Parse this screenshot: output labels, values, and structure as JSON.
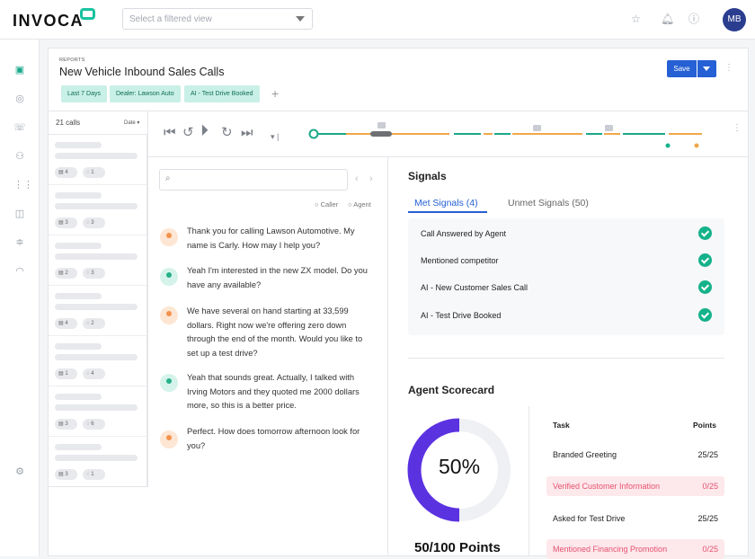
{
  "app": {
    "logo": "INVOCA",
    "view_placeholder": "Select a filtered view",
    "user_initials": "MB"
  },
  "icons": {
    "star": "star-icon",
    "bell": "bell-icon",
    "help": "help-icon"
  },
  "rail": [
    "dashboard-icon",
    "target-icon",
    "phone-icon",
    "people-icon",
    "grid-icon",
    "chart-icon",
    "sliders-icon",
    "signal-icon",
    "gear-icon"
  ],
  "header": {
    "eyebrow": "REPORTS",
    "title": "New Vehicle Inbound Sales Calls",
    "chips": [
      "Last 7 Days",
      "Dealer: Lawson Auto",
      "AI - Test Drive Booked"
    ],
    "add_label": "+",
    "save_label": "Save"
  },
  "calls": {
    "count_label": "21 calls",
    "sort_label": "Date",
    "items": [
      {
        "a": "4",
        "b": "1"
      },
      {
        "a": "3",
        "b": "3"
      },
      {
        "a": "2",
        "b": "3"
      },
      {
        "a": "4",
        "b": "2"
      },
      {
        "a": "1",
        "b": "4"
      },
      {
        "a": "3",
        "b": "6"
      },
      {
        "a": "3",
        "b": "1"
      }
    ]
  },
  "transcript": {
    "search_placeholder": "",
    "legend_caller": "Caller",
    "legend_agent": "Agent",
    "messages": [
      {
        "speaker": "caller",
        "text": "Thank you for calling Lawson Automotive. My name is Carly. How may I help you?"
      },
      {
        "speaker": "agent",
        "text": "Yeah I'm interested in the new ZX model. Do you have any available?"
      },
      {
        "speaker": "caller",
        "text": "We have several on hand starting at 33,599 dollars. Right now we're offering zero down through the end of the month. Would you like to set up a test drive?"
      },
      {
        "speaker": "agent",
        "text": "Yeah that sounds great. Actually, I talked with Irving Motors and they quoted me 2000 dollars more, so this is a better price."
      },
      {
        "speaker": "caller",
        "text": "Perfect. How does tomorrow afternoon look for you?"
      }
    ]
  },
  "signals": {
    "title": "Signals",
    "tab_met": "Met Signals (4)",
    "tab_unmet": "Unmet Signals (50)",
    "items": [
      "Call Answered by Agent",
      "Mentioned competitor",
      "AI - New Customer Sales Call",
      "AI - Test Drive Booked"
    ]
  },
  "scorecard": {
    "title": "Agent Scorecard",
    "percent_label": "50%",
    "percent": 0.5,
    "points_label": "50/100 Points",
    "col_task": "Task",
    "col_points": "Points",
    "tasks": [
      {
        "name": "Branded Greeting",
        "points": "25/25",
        "status": "pass"
      },
      {
        "name": "Verified Customer Information",
        "points": "0/25",
        "status": "fail"
      },
      {
        "name": "Asked for Test Drive",
        "points": "25/25",
        "status": "pass"
      },
      {
        "name": "Mentioned Financing Promotion",
        "points": "0/25",
        "status": "fail"
      }
    ]
  },
  "colors": {
    "accent": "#2560d4",
    "teal": "#19c2a0",
    "donut": "#5b32e0",
    "caller": "#f3934d",
    "agent": "#26b089"
  }
}
